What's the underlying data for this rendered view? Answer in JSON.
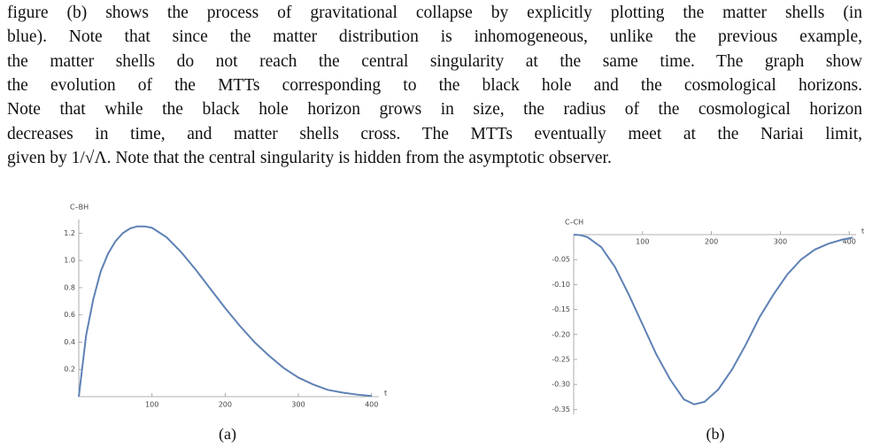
{
  "paragraph": [
    "figure (b) shows the process of gravitational collapse by explicitly plotting the matter shells (in",
    "blue). Note that since the matter distribution is inhomogeneous, unlike the previous example,",
    "the matter shells do not reach the central singularity at the same time. The graph show",
    "the evolution of the MTTs corresponding to the black hole and the cosmological horizons.",
    "Note that while the black hole horizon grows in size, the radius of the cosmological horizon",
    "decreases in time, and matter shells cross. The MTTs eventually meet at the Nariai limit,",
    "given by 1/√Λ. Note that the central singularity is hidden from the asymptotic observer."
  ],
  "chart_data": [
    {
      "type": "line",
      "y_label": "C–BH",
      "x_label": "t",
      "caption": "(a)",
      "x": [
        0,
        10,
        20,
        30,
        40,
        50,
        60,
        70,
        80,
        90,
        100,
        120,
        140,
        160,
        180,
        200,
        220,
        240,
        260,
        280,
        300,
        320,
        340,
        360,
        380,
        400
      ],
      "series": [
        {
          "color": "#5e81b5",
          "values": [
            0,
            0.45,
            0.72,
            0.92,
            1.05,
            1.14,
            1.2,
            1.235,
            1.25,
            1.25,
            1.24,
            1.17,
            1.06,
            0.93,
            0.79,
            0.65,
            0.52,
            0.4,
            0.3,
            0.21,
            0.14,
            0.09,
            0.05,
            0.03,
            0.015,
            0.005
          ]
        }
      ],
      "xlim": [
        0,
        410
      ],
      "ylim": [
        0,
        1.3
      ],
      "xticks": [
        100,
        200,
        300,
        400
      ],
      "yticks": [
        0.2,
        0.4,
        0.6,
        0.8,
        {
          "value": 1,
          "label": "1.0"
        },
        1.2
      ]
    },
    {
      "type": "line",
      "y_label": "C–CH",
      "x_label": "t",
      "caption": "(b)",
      "x": [
        0,
        10,
        20,
        40,
        60,
        80,
        100,
        120,
        140,
        160,
        175,
        190,
        210,
        230,
        250,
        270,
        290,
        310,
        330,
        350,
        370,
        390,
        405
      ],
      "series": [
        {
          "color": "#5e81b5",
          "values": [
            0,
            -0.001,
            -0.005,
            -0.025,
            -0.065,
            -0.12,
            -0.18,
            -0.24,
            -0.29,
            -0.33,
            -0.34,
            -0.335,
            -0.31,
            -0.27,
            -0.22,
            -0.165,
            -0.12,
            -0.08,
            -0.05,
            -0.03,
            -0.018,
            -0.01,
            -0.006
          ]
        }
      ],
      "xlim": [
        0,
        410
      ],
      "ylim": [
        -0.36,
        0
      ],
      "xticks": [
        100,
        200,
        300,
        400
      ],
      "yticks": [
        -0.05,
        {
          "value": -0.1,
          "label": "-0.10"
        },
        -0.15,
        {
          "value": -0.2,
          "label": "-0.20"
        },
        -0.25,
        {
          "value": -0.3,
          "label": "-0.30"
        },
        -0.35
      ]
    }
  ]
}
